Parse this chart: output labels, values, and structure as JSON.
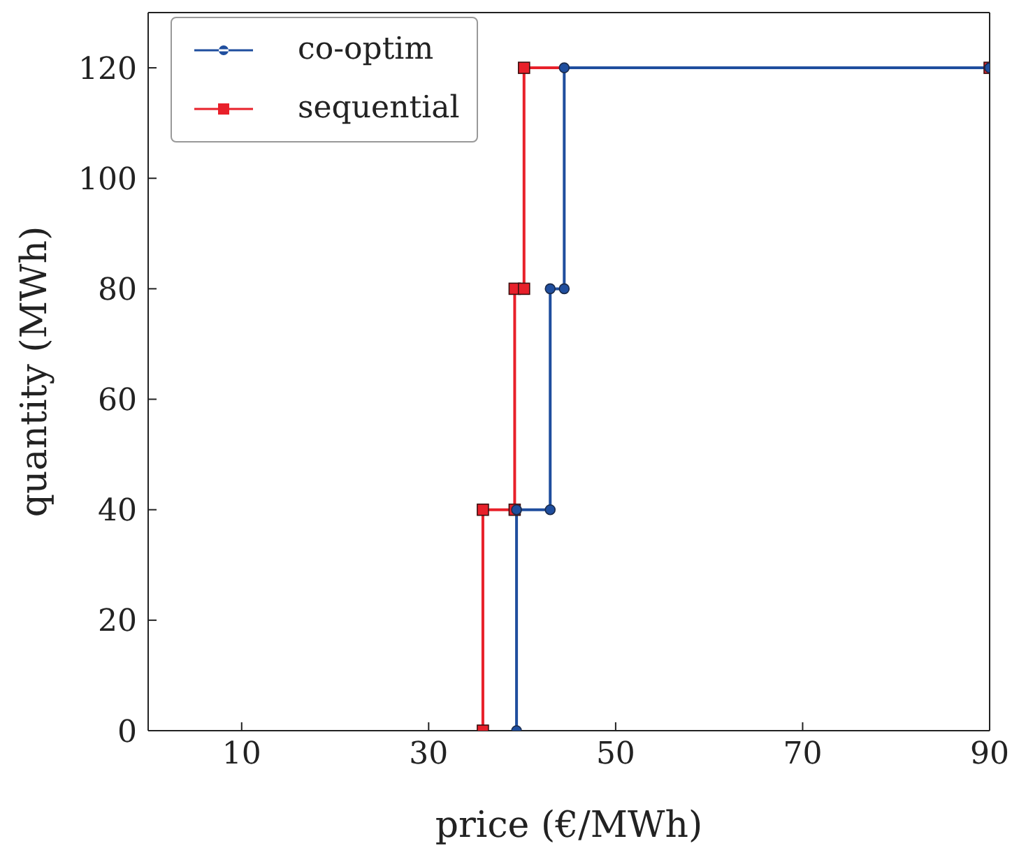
{
  "chart_data": {
    "type": "line",
    "xlabel": "price (€/MWh)",
    "ylabel": "quantity (MWh)",
    "xlim": [
      0,
      90
    ],
    "ylim": [
      0,
      130
    ],
    "xticks": [
      10,
      30,
      50,
      70,
      90
    ],
    "yticks": [
      0,
      20,
      40,
      60,
      80,
      100,
      120
    ],
    "grid": false,
    "legend": "top left",
    "line_style": "solid",
    "series": [
      {
        "name": "co-optim",
        "color": "#1f4e9e",
        "marker": "circle",
        "x": [
          39.4,
          39.4,
          43.0,
          43.0,
          44.5,
          44.5,
          90
        ],
        "values": [
          0,
          40,
          40,
          80,
          80,
          120,
          120
        ]
      },
      {
        "name": "sequential",
        "color": "#e8202a",
        "marker": "square",
        "x": [
          35.8,
          35.8,
          39.2,
          39.2,
          40.2,
          40.2,
          90
        ],
        "values": [
          0,
          40,
          40,
          80,
          80,
          120,
          120
        ]
      }
    ]
  }
}
